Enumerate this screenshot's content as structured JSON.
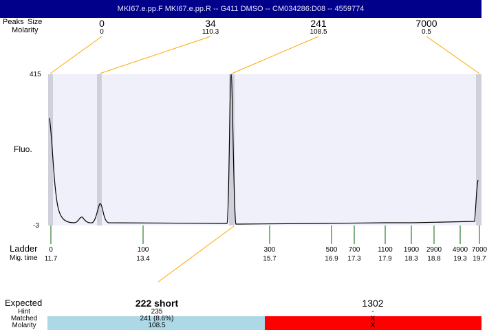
{
  "title": "MKI67.e.pp.F  MKI67.e.pp.R -- G411 DMSO -- CM034286:D08 -- 4559774",
  "header": {
    "row1_labels": [
      "Peaks",
      "Size"
    ],
    "row2_label": "Molarity"
  },
  "peaks": [
    {
      "size": "0",
      "molarity": "0"
    },
    {
      "size": "34",
      "molarity": "110.3"
    },
    {
      "size": "241",
      "molarity": "108.5"
    },
    {
      "size": "7000",
      "molarity": "0.5"
    }
  ],
  "axis": {
    "ymax": "415",
    "ymin": "-3",
    "ylabel": "Fluo."
  },
  "ladder": {
    "label": "Ladder",
    "time_label": "Mig. time",
    "sizes": [
      "0",
      "100",
      "300",
      "500",
      "700",
      "1100",
      "1900",
      "2900",
      "4900",
      "7000"
    ],
    "times": [
      "11.7",
      "13.4",
      "15.7",
      "16.9",
      "17.3",
      "17.9",
      "18.3",
      "18.8",
      "19.3",
      "19.7"
    ]
  },
  "expected": {
    "labels": [
      "Expected",
      "Hint",
      "Matched",
      "Molarity"
    ],
    "items": [
      {
        "expected": "222 short",
        "hint": "235",
        "matched": "241 (8.6%)",
        "molarity": "108.5",
        "color": "#add8e6"
      },
      {
        "expected": "1302",
        "hint": "-",
        "matched": "X",
        "molarity": "X",
        "color": "#ff0000"
      }
    ]
  },
  "colors": {
    "plot_bg": "#f0f0fa",
    "marker": "#d0d0dc",
    "connector": "#ffa500",
    "ladder_tick": "#006400"
  }
}
